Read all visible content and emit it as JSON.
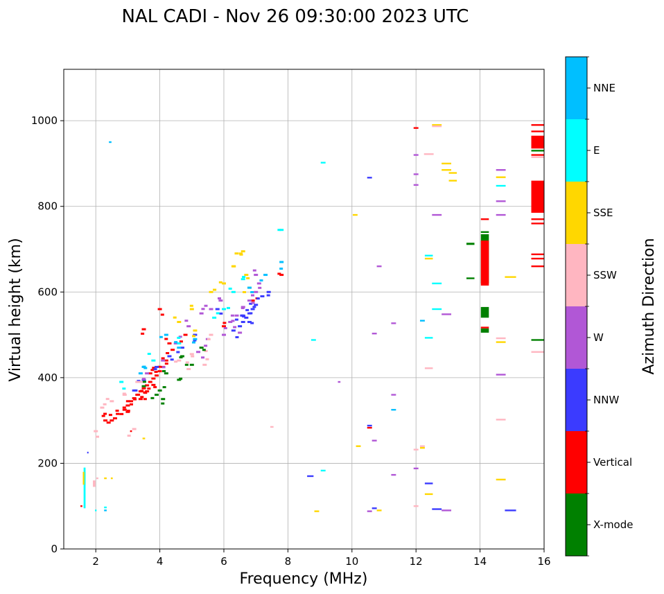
{
  "chart_data": {
    "type": "scatter",
    "title": "NAL CADI - Nov 26 09:30:00 2023 UTC",
    "xlabel": "Frequency (MHz)",
    "ylabel": "Virtual height (km)",
    "xlim": [
      1,
      16
    ],
    "ylim": [
      0,
      1120
    ],
    "xticks": [
      2,
      4,
      6,
      8,
      10,
      12,
      14,
      16
    ],
    "yticks": [
      0,
      200,
      400,
      600,
      800,
      1000
    ],
    "grid": true,
    "colorbar": {
      "label": "Azimuth Direction",
      "categories": [
        {
          "name": "X-mode",
          "color": "#008000"
        },
        {
          "name": "Vertical",
          "color": "#ff0000"
        },
        {
          "name": "NNW",
          "color": "#3b3bff"
        },
        {
          "name": "W",
          "color": "#b157d6"
        },
        {
          "name": "SSW",
          "color": "#ffb6c1"
        },
        {
          "name": "SSE",
          "color": "#ffd700"
        },
        {
          "name": "E",
          "color": "#00ffff"
        },
        {
          "name": "NNE",
          "color": "#00bfff"
        }
      ]
    },
    "band_points": [
      {
        "c": "Vertical",
        "f": 2.4,
        "h": 295
      },
      {
        "c": "Vertical",
        "f": 2.5,
        "h": 300
      },
      {
        "c": "Vertical",
        "f": 2.6,
        "h": 305
      },
      {
        "c": "Vertical",
        "f": 2.8,
        "h": 315
      },
      {
        "c": "Vertical",
        "f": 2.9,
        "h": 325
      },
      {
        "c": "Vertical",
        "f": 3.0,
        "h": 335
      },
      {
        "c": "Vertical",
        "f": 3.1,
        "h": 345
      },
      {
        "c": "Vertical",
        "f": 3.2,
        "h": 352
      },
      {
        "c": "Vertical",
        "f": 3.3,
        "h": 360
      },
      {
        "c": "Vertical",
        "f": 3.4,
        "h": 368
      },
      {
        "c": "Vertical",
        "f": 3.5,
        "h": 375
      },
      {
        "c": "Vertical",
        "f": 3.6,
        "h": 382
      },
      {
        "c": "Vertical",
        "f": 3.7,
        "h": 390
      },
      {
        "c": "Vertical",
        "f": 3.8,
        "h": 398
      },
      {
        "c": "Vertical",
        "f": 3.9,
        "h": 405
      },
      {
        "c": "Vertical",
        "f": 4.0,
        "h": 415
      },
      {
        "c": "Vertical",
        "f": 4.1,
        "h": 425
      },
      {
        "c": "Vertical",
        "f": 4.2,
        "h": 440
      },
      {
        "c": "Vertical",
        "f": 3.0,
        "h": 320
      },
      {
        "c": "Vertical",
        "f": 3.4,
        "h": 350
      },
      {
        "c": "Vertical",
        "f": 3.6,
        "h": 368
      },
      {
        "c": "Vertical",
        "f": 3.8,
        "h": 383
      },
      {
        "c": "Vertical",
        "f": 4.4,
        "h": 465
      },
      {
        "c": "Vertical",
        "f": 3.5,
        "h": 513
      },
      {
        "c": "Vertical",
        "f": 4.0,
        "h": 560
      },
      {
        "c": "Vertical",
        "f": 4.8,
        "h": 500
      },
      {
        "c": "Vertical",
        "f": 2.3,
        "h": 300
      },
      {
        "c": "Vertical",
        "f": 3.7,
        "h": 410
      },
      {
        "c": "Vertical",
        "f": 4.3,
        "h": 480
      },
      {
        "c": "Vertical",
        "f": 6.0,
        "h": 520
      },
      {
        "c": "Vertical",
        "f": 6.9,
        "h": 580
      },
      {
        "c": "Vertical",
        "f": 7.8,
        "h": 640
      },
      {
        "c": "NNW",
        "f": 3.2,
        "h": 370
      },
      {
        "c": "NNW",
        "f": 3.5,
        "h": 395
      },
      {
        "c": "NNW",
        "f": 3.9,
        "h": 425
      },
      {
        "c": "NNW",
        "f": 4.3,
        "h": 450
      },
      {
        "c": "NNW",
        "f": 4.7,
        "h": 470
      },
      {
        "c": "NNW",
        "f": 5.1,
        "h": 500
      },
      {
        "c": "NNW",
        "f": 6.3,
        "h": 510
      },
      {
        "c": "NNW",
        "f": 6.5,
        "h": 520
      },
      {
        "c": "NNW",
        "f": 6.6,
        "h": 530
      },
      {
        "c": "NNW",
        "f": 6.7,
        "h": 540
      },
      {
        "c": "NNW",
        "f": 6.8,
        "h": 550
      },
      {
        "c": "NNW",
        "f": 6.9,
        "h": 560
      },
      {
        "c": "NNW",
        "f": 7.0,
        "h": 570
      },
      {
        "c": "NNW",
        "f": 6.6,
        "h": 545
      },
      {
        "c": "NNW",
        "f": 6.8,
        "h": 530
      },
      {
        "c": "NNW",
        "f": 7.2,
        "h": 590
      },
      {
        "c": "NNW",
        "f": 7.4,
        "h": 600
      },
      {
        "c": "NNW",
        "f": 5.8,
        "h": 560
      },
      {
        "c": "W",
        "f": 3.6,
        "h": 410
      },
      {
        "c": "W",
        "f": 4.1,
        "h": 440
      },
      {
        "c": "W",
        "f": 4.5,
        "h": 480
      },
      {
        "c": "W",
        "f": 4.9,
        "h": 520
      },
      {
        "c": "W",
        "f": 5.3,
        "h": 550
      },
      {
        "c": "W",
        "f": 5.6,
        "h": 560
      },
      {
        "c": "W",
        "f": 5.9,
        "h": 580
      },
      {
        "c": "W",
        "f": 6.2,
        "h": 530
      },
      {
        "c": "W",
        "f": 6.4,
        "h": 545
      },
      {
        "c": "W",
        "f": 6.6,
        "h": 565
      },
      {
        "c": "W",
        "f": 6.8,
        "h": 580
      },
      {
        "c": "W",
        "f": 7.0,
        "h": 600
      },
      {
        "c": "W",
        "f": 7.1,
        "h": 620
      },
      {
        "c": "W",
        "f": 5.2,
        "h": 460
      },
      {
        "c": "W",
        "f": 5.5,
        "h": 490
      },
      {
        "c": "W",
        "f": 6.0,
        "h": 500
      },
      {
        "c": "W",
        "f": 6.5,
        "h": 505
      },
      {
        "c": "W",
        "f": 7.0,
        "h": 640
      },
      {
        "c": "SSW",
        "f": 2.2,
        "h": 330
      },
      {
        "c": "SSW",
        "f": 2.5,
        "h": 345
      },
      {
        "c": "SSW",
        "f": 2.9,
        "h": 360
      },
      {
        "c": "SSW",
        "f": 3.3,
        "h": 390
      },
      {
        "c": "SSW",
        "f": 4.6,
        "h": 440
      },
      {
        "c": "SSW",
        "f": 5.0,
        "h": 455
      },
      {
        "c": "SSW",
        "f": 5.3,
        "h": 470
      },
      {
        "c": "SSW",
        "f": 5.6,
        "h": 500
      },
      {
        "c": "SSW",
        "f": 2.0,
        "h": 275
      },
      {
        "c": "SSW",
        "f": 3.2,
        "h": 280
      },
      {
        "c": "SSW",
        "f": 4.9,
        "h": 420
      },
      {
        "c": "SSW",
        "f": 5.4,
        "h": 430
      },
      {
        "c": "SSE",
        "f": 4.6,
        "h": 530
      },
      {
        "c": "SSE",
        "f": 5.0,
        "h": 560
      },
      {
        "c": "SSE",
        "f": 5.6,
        "h": 600
      },
      {
        "c": "SSE",
        "f": 6.0,
        "h": 620
      },
      {
        "c": "SSE",
        "f": 6.3,
        "h": 660
      },
      {
        "c": "SSE",
        "f": 6.4,
        "h": 690
      },
      {
        "c": "SSE",
        "f": 6.6,
        "h": 695
      },
      {
        "c": "SSE",
        "f": 6.7,
        "h": 640
      },
      {
        "c": "SSE",
        "f": 6.8,
        "h": 610
      },
      {
        "c": "SSE",
        "f": 5.1,
        "h": 510
      },
      {
        "c": "E",
        "f": 2.8,
        "h": 390
      },
      {
        "c": "E",
        "f": 3.8,
        "h": 440
      },
      {
        "c": "E",
        "f": 4.6,
        "h": 480
      },
      {
        "c": "E",
        "f": 5.7,
        "h": 540
      },
      {
        "c": "E",
        "f": 6.3,
        "h": 600
      },
      {
        "c": "E",
        "f": 6.6,
        "h": 630
      },
      {
        "c": "E",
        "f": 6.0,
        "h": 560
      },
      {
        "c": "E",
        "f": 7.8,
        "h": 745
      },
      {
        "c": "NNE",
        "f": 3.5,
        "h": 425
      },
      {
        "c": "NNE",
        "f": 4.2,
        "h": 500
      },
      {
        "c": "NNE",
        "f": 5.1,
        "h": 490
      },
      {
        "c": "NNE",
        "f": 6.8,
        "h": 610
      },
      {
        "c": "NNE",
        "f": 7.3,
        "h": 640
      },
      {
        "c": "NNE",
        "f": 7.8,
        "h": 670
      },
      {
        "c": "NNE",
        "f": 3.4,
        "h": 410
      },
      {
        "c": "NNE",
        "f": 4.6,
        "h": 470
      },
      {
        "c": "X-mode",
        "f": 3.5,
        "h": 380
      },
      {
        "c": "X-mode",
        "f": 4.0,
        "h": 370
      },
      {
        "c": "X-mode",
        "f": 4.2,
        "h": 410
      },
      {
        "c": "X-mode",
        "f": 4.6,
        "h": 395
      },
      {
        "c": "X-mode",
        "f": 5.0,
        "h": 430
      },
      {
        "c": "X-mode",
        "f": 4.7,
        "h": 450
      },
      {
        "c": "X-mode",
        "f": 5.3,
        "h": 470
      },
      {
        "c": "X-mode",
        "f": 3.9,
        "h": 360
      },
      {
        "c": "X-mode",
        "f": 4.1,
        "h": 350
      }
    ],
    "sparse_points": [
      {
        "c": "NNE",
        "f": 2.45,
        "h": 950,
        "w": 0.08
      },
      {
        "c": "E",
        "f": 1.65,
        "h": 95,
        "w": 0.06,
        "h2": 190
      },
      {
        "c": "SSE",
        "f": 1.62,
        "h": 150,
        "w": 0.05,
        "h2": 180
      },
      {
        "c": "Vertical",
        "f": 1.55,
        "h": 100,
        "w": 0.06
      },
      {
        "c": "SSW",
        "f": 1.95,
        "h": 160,
        "w": 0.08,
        "h2": 145
      },
      {
        "c": "SSW",
        "f": 2.05,
        "h": 165,
        "w": 0.06
      },
      {
        "c": "SSE",
        "f": 2.3,
        "h": 165,
        "w": 0.08
      },
      {
        "c": "SSE",
        "f": 2.5,
        "h": 165,
        "w": 0.06
      },
      {
        "c": "NNE",
        "f": 2.3,
        "h": 90,
        "w": 0.08
      },
      {
        "c": "E",
        "f": 2.3,
        "h": 97,
        "w": 0.08
      },
      {
        "c": "E",
        "f": 2.0,
        "h": 90,
        "w": 0.05
      },
      {
        "c": "NNW",
        "f": 1.75,
        "h": 225,
        "w": 0.04
      },
      {
        "c": "Vertical",
        "f": 3.1,
        "h": 275,
        "w": 0.06
      },
      {
        "c": "SSE",
        "f": 3.5,
        "h": 258,
        "w": 0.08
      },
      {
        "c": "SSW",
        "f": 7.5,
        "h": 285,
        "w": 0.1
      },
      {
        "c": "W",
        "f": 9.6,
        "h": 390,
        "w": 0.08
      },
      {
        "c": "E",
        "f": 8.8,
        "h": 488,
        "w": 0.15
      },
      {
        "c": "E",
        "f": 9.1,
        "h": 902,
        "w": 0.15
      },
      {
        "c": "NNW",
        "f": 8.7,
        "h": 170,
        "w": 0.2
      },
      {
        "c": "E",
        "f": 9.1,
        "h": 183,
        "w": 0.15
      },
      {
        "c": "SSE",
        "f": 8.9,
        "h": 88,
        "w": 0.15
      },
      {
        "c": "SSE",
        "f": 10.1,
        "h": 780,
        "w": 0.15
      },
      {
        "c": "SSE",
        "f": 10.2,
        "h": 240,
        "w": 0.15
      },
      {
        "c": "NNW",
        "f": 10.55,
        "h": 867,
        "w": 0.15
      },
      {
        "c": "W",
        "f": 10.85,
        "h": 660,
        "w": 0.15
      },
      {
        "c": "W",
        "f": 10.7,
        "h": 503,
        "w": 0.15
      },
      {
        "c": "W",
        "f": 10.7,
        "h": 253,
        "w": 0.15
      },
      {
        "c": "Vertical",
        "f": 10.55,
        "h": 283,
        "w": 0.15
      },
      {
        "c": "NNW",
        "f": 10.55,
        "h": 288,
        "w": 0.15
      },
      {
        "c": "NNW",
        "f": 10.7,
        "h": 95,
        "w": 0.15
      },
      {
        "c": "W",
        "f": 10.55,
        "h": 88,
        "w": 0.15
      },
      {
        "c": "SSE",
        "f": 10.85,
        "h": 90,
        "w": 0.15
      },
      {
        "c": "W",
        "f": 11.3,
        "h": 527,
        "w": 0.15
      },
      {
        "c": "W",
        "f": 11.3,
        "h": 360,
        "w": 0.15
      },
      {
        "c": "NNE",
        "f": 11.3,
        "h": 325,
        "w": 0.15
      },
      {
        "c": "W",
        "f": 11.3,
        "h": 173,
        "w": 0.15
      },
      {
        "c": "NNE",
        "f": 12.2,
        "h": 533,
        "w": 0.15
      },
      {
        "c": "Vertical",
        "f": 12.0,
        "h": 983,
        "w": 0.15
      },
      {
        "c": "W",
        "f": 12.0,
        "h": 920,
        "w": 0.15
      },
      {
        "c": "W",
        "f": 12.0,
        "h": 875,
        "w": 0.15
      },
      {
        "c": "W",
        "f": 12.0,
        "h": 850,
        "w": 0.15
      },
      {
        "c": "SSW",
        "f": 12.0,
        "h": 232,
        "w": 0.15
      },
      {
        "c": "SSW",
        "f": 12.0,
        "h": 100,
        "w": 0.15
      },
      {
        "c": "W",
        "f": 12.0,
        "h": 188,
        "w": 0.15
      },
      {
        "c": "SSW",
        "f": 12.2,
        "h": 240,
        "w": 0.15
      },
      {
        "c": "SSE",
        "f": 12.2,
        "h": 236,
        "w": 0.15
      },
      {
        "c": "SSW",
        "f": 12.4,
        "h": 922,
        "w": 0.3
      },
      {
        "c": "E",
        "f": 12.4,
        "h": 685,
        "w": 0.25
      },
      {
        "c": "SSE",
        "f": 12.4,
        "h": 678,
        "w": 0.25
      },
      {
        "c": "E",
        "f": 12.4,
        "h": 493,
        "w": 0.25
      },
      {
        "c": "SSW",
        "f": 12.4,
        "h": 422,
        "w": 0.25
      },
      {
        "c": "NNW",
        "f": 12.4,
        "h": 153,
        "w": 0.25
      },
      {
        "c": "SSE",
        "f": 12.4,
        "h": 128,
        "w": 0.25
      },
      {
        "c": "SSE",
        "f": 12.65,
        "h": 990,
        "w": 0.3
      },
      {
        "c": "SSW",
        "f": 12.65,
        "h": 987,
        "w": 0.3
      },
      {
        "c": "W",
        "f": 12.65,
        "h": 780,
        "w": 0.3
      },
      {
        "c": "E",
        "f": 12.65,
        "h": 620,
        "w": 0.3
      },
      {
        "c": "E",
        "f": 12.65,
        "h": 560,
        "w": 0.3
      },
      {
        "c": "NNW",
        "f": 12.65,
        "h": 93,
        "w": 0.3
      },
      {
        "c": "SSE",
        "f": 12.95,
        "h": 900,
        "w": 0.3
      },
      {
        "c": "SSE",
        "f": 12.95,
        "h": 885,
        "w": 0.3
      },
      {
        "c": "SSE",
        "f": 13.15,
        "h": 878,
        "w": 0.25
      },
      {
        "c": "SSE",
        "f": 13.15,
        "h": 860,
        "w": 0.25
      },
      {
        "c": "W",
        "f": 12.95,
        "h": 548,
        "w": 0.3
      },
      {
        "c": "W",
        "f": 12.95,
        "h": 90,
        "w": 0.3
      },
      {
        "c": "X-mode",
        "f": 13.7,
        "h": 710,
        "w": 0.25,
        "h2": 715
      },
      {
        "c": "X-mode",
        "f": 13.7,
        "h": 632,
        "w": 0.25
      },
      {
        "c": "Vertical",
        "f": 14.15,
        "h": 770,
        "w": 0.25
      },
      {
        "c": "X-mode",
        "f": 14.15,
        "h": 740,
        "w": 0.25
      },
      {
        "c": "X-mode",
        "f": 14.15,
        "h": 620,
        "w": 0.25,
        "h2": 735
      },
      {
        "c": "Vertical",
        "f": 14.15,
        "h": 615,
        "w": 0.25,
        "h2": 720
      },
      {
        "c": "X-mode",
        "f": 14.15,
        "h": 540,
        "w": 0.25,
        "h2": 565
      },
      {
        "c": "X-mode",
        "f": 14.15,
        "h": 505,
        "w": 0.25,
        "h2": 515
      },
      {
        "c": "Vertical",
        "f": 14.15,
        "h": 517,
        "w": 0.25
      },
      {
        "c": "W",
        "f": 14.65,
        "h": 885,
        "w": 0.3
      },
      {
        "c": "SSE",
        "f": 14.65,
        "h": 868,
        "w": 0.3
      },
      {
        "c": "E",
        "f": 14.65,
        "h": 848,
        "w": 0.3
      },
      {
        "c": "W",
        "f": 14.65,
        "h": 812,
        "w": 0.3
      },
      {
        "c": "W",
        "f": 14.65,
        "h": 780,
        "w": 0.3
      },
      {
        "c": "SSE",
        "f": 14.95,
        "h": 635,
        "w": 0.35
      },
      {
        "c": "SSW",
        "f": 14.65,
        "h": 492,
        "w": 0.3
      },
      {
        "c": "SSE",
        "f": 14.65,
        "h": 483,
        "w": 0.3
      },
      {
        "c": "W",
        "f": 14.65,
        "h": 407,
        "w": 0.3
      },
      {
        "c": "SSW",
        "f": 14.65,
        "h": 302,
        "w": 0.3
      },
      {
        "c": "SSE",
        "f": 14.65,
        "h": 162,
        "w": 0.3
      },
      {
        "c": "NNW",
        "f": 14.95,
        "h": 90,
        "w": 0.35
      },
      {
        "c": "Vertical",
        "f": 15.8,
        "h": 990,
        "w": 0.4
      },
      {
        "c": "Vertical",
        "f": 15.8,
        "h": 975,
        "w": 0.4
      },
      {
        "c": "Vertical",
        "f": 15.8,
        "h": 960,
        "w": 0.4
      },
      {
        "c": "Vertical",
        "f": 15.8,
        "h": 935,
        "w": 0.4,
        "h2": 965
      },
      {
        "c": "X-mode",
        "f": 15.8,
        "h": 930,
        "w": 0.4
      },
      {
        "c": "Vertical",
        "f": 15.8,
        "h": 920,
        "w": 0.4
      },
      {
        "c": "SSW",
        "f": 15.8,
        "h": 915,
        "w": 0.4
      },
      {
        "c": "Vertical",
        "f": 15.8,
        "h": 785,
        "w": 0.4,
        "h2": 860
      },
      {
        "c": "Vertical",
        "f": 15.8,
        "h": 770,
        "w": 0.4
      },
      {
        "c": "Vertical",
        "f": 15.8,
        "h": 760,
        "w": 0.4
      },
      {
        "c": "Vertical",
        "f": 15.8,
        "h": 688,
        "w": 0.4
      },
      {
        "c": "Vertical",
        "f": 15.8,
        "h": 678,
        "w": 0.4
      },
      {
        "c": "Vertical",
        "f": 15.8,
        "h": 660,
        "w": 0.4
      },
      {
        "c": "X-mode",
        "f": 15.8,
        "h": 488,
        "w": 0.4
      },
      {
        "c": "SSW",
        "f": 15.8,
        "h": 460,
        "w": 0.4
      }
    ]
  }
}
